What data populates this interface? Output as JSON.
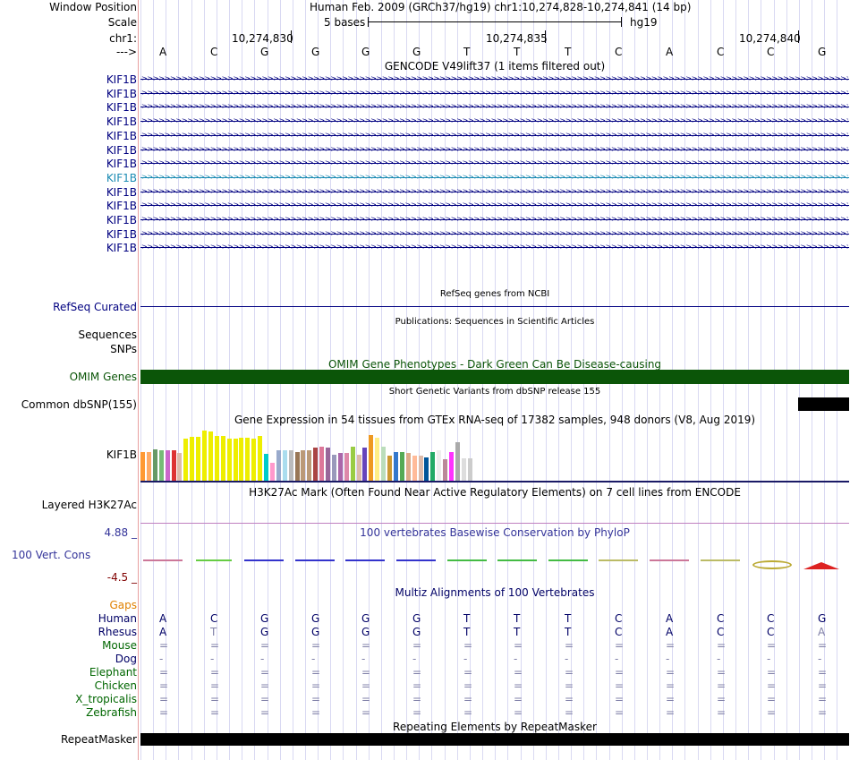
{
  "header": {
    "window_position_label": "Window Position",
    "window_position_value": "Human Feb. 2009 (GRCh37/hg19)   chr1:10,274,828-10,274,841 (14 bp)",
    "scale_label": "Scale",
    "scale_value": "5 bases",
    "assembly": "hg19",
    "chrom_label": "chr1:",
    "strand_label": "--->",
    "ruler_ticks": [
      "10,274,830",
      "10,274,835",
      "10,274,840"
    ]
  },
  "bases": [
    "A",
    "C",
    "G",
    "G",
    "G",
    "G",
    "T",
    "T",
    "T",
    "C",
    "A",
    "C",
    "C",
    "G"
  ],
  "tracks": {
    "gencode": {
      "title": "GENCODE V49lift37 (1 items filtered out)",
      "genes": [
        "KIF1B",
        "KIF1B",
        "KIF1B",
        "KIF1B",
        "KIF1B",
        "KIF1B",
        "KIF1B",
        "KIF1B",
        "KIF1B",
        "KIF1B",
        "KIF1B",
        "KIF1B",
        "KIF1B"
      ],
      "highlight_index": 7
    },
    "refseq": {
      "title": "RefSeq genes from NCBI",
      "label": "RefSeq Curated"
    },
    "publications": {
      "title": "Publications: Sequences in Scientific Articles",
      "label1": "Sequences",
      "label2": "SNPs"
    },
    "omim": {
      "title": "OMIM Gene Phenotypes - Dark Green Can Be Disease-causing",
      "label": "OMIM Genes",
      "color": "#0b5508"
    },
    "dbsnp": {
      "title": "Short Genetic Variants from dbSNP release 155",
      "label": "Common dbSNP(155)"
    },
    "gtex": {
      "title": "Gene Expression in 54 tissues from GTEx RNA-seq of 17382 samples, 948 donors (V8, Aug 2019)",
      "label": "KIF1B",
      "levels": [
        0.52,
        0.52,
        0.56,
        0.55,
        0.55,
        0.55,
        0.5,
        0.75,
        0.79,
        0.79,
        0.9,
        0.88,
        0.8,
        0.8,
        0.76,
        0.76,
        0.78,
        0.78,
        0.76,
        0.8,
        0.48,
        0.32,
        0.55,
        0.55,
        0.55,
        0.52,
        0.55,
        0.55,
        0.6,
        0.62,
        0.6,
        0.47,
        0.5,
        0.5,
        0.62,
        0.47,
        0.6,
        0.83,
        0.77,
        0.62,
        0.45,
        0.52,
        0.52,
        0.5,
        0.45,
        0.45,
        0.42,
        0.52,
        0.55,
        0.38,
        0.52,
        0.69,
        0.41,
        0.41
      ],
      "colors": [
        "#ff9933",
        "#ffaa66",
        "#669966",
        "#77bb77",
        "#cc66cc",
        "#dd3333",
        "#ddbbaa",
        "#eeee00",
        "#eeee00",
        "#eeee00",
        "#eeee00",
        "#eeee00",
        "#eeee00",
        "#eeee00",
        "#eeee00",
        "#eeee00",
        "#eeee00",
        "#eeee00",
        "#eeee00",
        "#eeee00",
        "#00cccc",
        "#ff99cc",
        "#99aacc",
        "#aaddee",
        "#bbbbbb",
        "#997755",
        "#bb9977",
        "#bb9977",
        "#aa4444",
        "#dd7799",
        "#996699",
        "#9999bb",
        "#aa66aa",
        "#dd88aa",
        "#99cc44",
        "#ddbbaa",
        "#6644bb",
        "#ee9922",
        "#ffee88",
        "#bbddbb",
        "#cc9933",
        "#3377cc",
        "#55aa55",
        "#ddaa88",
        "#ffbb99",
        "#ddbbaa",
        "#005599",
        "#22aa66",
        "#eeeeee",
        "#bb8899",
        "#ff33ff",
        "#aaaaaa",
        "#dddddd",
        "#cccccc"
      ]
    },
    "h3k27ac": {
      "title": "H3K27Ac Mark (Often Found Near Active Regulatory Elements) on 7 cell lines from ENCODE",
      "label": "Layered H3K27Ac"
    },
    "phylop": {
      "title": "100 vertebrates Basewise Conservation by PhyloP",
      "label": "100 Vert. Cons",
      "max": "4.88 _",
      "min": "-4.5 _"
    },
    "multiz": {
      "title": "Multiz Alignments of 100 Vertebrates",
      "gaps_label": "Gaps",
      "species": [
        {
          "name": "Human",
          "row": [
            "A",
            "C",
            "G",
            "G",
            "G",
            "G",
            "T",
            "T",
            "T",
            "C",
            "A",
            "C",
            "C",
            "G"
          ]
        },
        {
          "name": "Rhesus",
          "row": [
            "A",
            "T",
            "G",
            "G",
            "G",
            "G",
            "T",
            "T",
            "T",
            "C",
            "A",
            "C",
            "C",
            "A"
          ]
        },
        {
          "name": "Mouse",
          "row": [
            "=",
            "=",
            "=",
            "=",
            "=",
            "=",
            "=",
            "=",
            "=",
            "=",
            "=",
            "=",
            "=",
            "="
          ]
        },
        {
          "name": "Dog",
          "row": [
            "-",
            "-",
            "-",
            "-",
            "-",
            "-",
            "-",
            "-",
            "-",
            "-",
            "-",
            "-",
            "-",
            "-"
          ]
        },
        {
          "name": "Elephant",
          "row": [
            "=",
            "=",
            "=",
            "=",
            "=",
            "=",
            "=",
            "=",
            "=",
            "=",
            "=",
            "=",
            "=",
            "="
          ]
        },
        {
          "name": "Chicken",
          "row": [
            "=",
            "=",
            "=",
            "=",
            "=",
            "=",
            "=",
            "=",
            "=",
            "=",
            "=",
            "=",
            "=",
            "="
          ]
        },
        {
          "name": "X_tropicalis",
          "row": [
            "=",
            "=",
            "=",
            "=",
            "=",
            "=",
            "=",
            "=",
            "=",
            "=",
            "=",
            "=",
            "=",
            "="
          ]
        },
        {
          "name": "Zebrafish",
          "row": [
            "=",
            "=",
            "=",
            "=",
            "=",
            "=",
            "=",
            "=",
            "=",
            "=",
            "=",
            "=",
            "=",
            "="
          ]
        }
      ]
    },
    "repeatmasker": {
      "title": "Repeating Elements by RepeatMasker",
      "label": "RepeatMasker"
    }
  }
}
